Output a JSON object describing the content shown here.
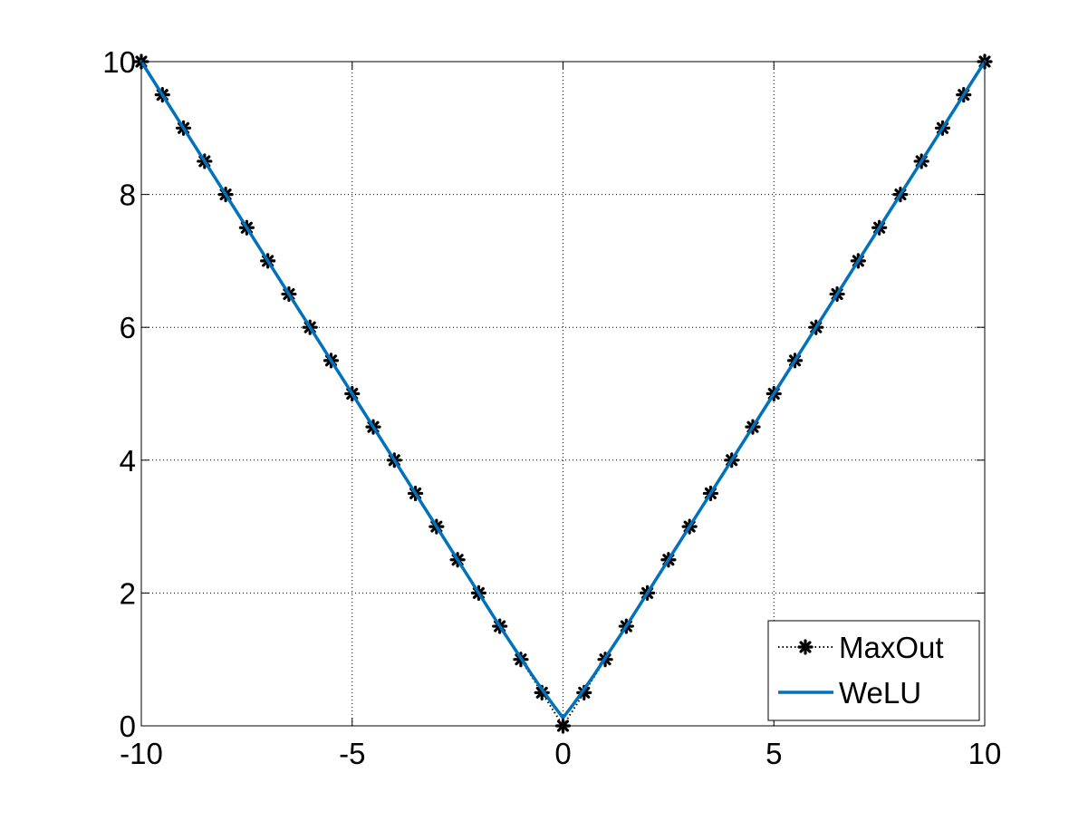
{
  "chart_data": {
    "type": "line",
    "title": "",
    "xlabel": "",
    "ylabel": "",
    "xlim": [
      -10,
      10
    ],
    "ylim": [
      0,
      10
    ],
    "x_ticks": [
      -10,
      -5,
      0,
      5,
      10
    ],
    "x_tick_labels": [
      "-10",
      "-5",
      "0",
      "5",
      "10"
    ],
    "y_ticks": [
      0,
      2,
      4,
      6,
      8,
      10
    ],
    "y_tick_labels": [
      "0",
      "2",
      "4",
      "6",
      "8",
      "10"
    ],
    "grid": true,
    "legend_position": "bottom-right",
    "series": [
      {
        "name": "MaxOut",
        "style": "dotted line with asterisk markers",
        "color": "#000000",
        "x": [
          -10,
          -9.5,
          -9,
          -8.5,
          -8,
          -7.5,
          -7,
          -6.5,
          -6,
          -5.5,
          -5,
          -4.5,
          -4,
          -3.5,
          -3,
          -2.5,
          -2,
          -1.5,
          -1,
          -0.5,
          0,
          0.5,
          1,
          1.5,
          2,
          2.5,
          3,
          3.5,
          4,
          4.5,
          5,
          5.5,
          6,
          6.5,
          7,
          7.5,
          8,
          8.5,
          9,
          9.5,
          10
        ],
        "y": [
          10,
          9.5,
          9,
          8.5,
          8,
          7.5,
          7,
          6.5,
          6,
          5.5,
          5,
          4.5,
          4,
          3.5,
          3,
          2.5,
          2,
          1.5,
          1,
          0.5,
          0,
          0.5,
          1,
          1.5,
          2,
          2.5,
          3,
          3.5,
          4,
          4.5,
          5,
          5.5,
          6,
          6.5,
          7,
          7.5,
          8,
          8.5,
          9,
          9.5,
          10
        ]
      },
      {
        "name": "WeLU",
        "style": "solid line",
        "color": "#0072BD",
        "x": [
          -10,
          -9,
          -8,
          -7,
          -6,
          -5,
          -4,
          -3,
          -2.5,
          -2,
          -1.5,
          -1,
          -0.75,
          -0.5,
          -0.25,
          0,
          0.25,
          0.5,
          0.75,
          1,
          1.5,
          2,
          2.5,
          3,
          4,
          5,
          6,
          7,
          8,
          9,
          10
        ],
        "y": [
          10,
          9,
          8,
          7,
          6,
          5,
          4,
          3,
          2.5,
          2,
          1.5,
          1.02,
          0.78,
          0.55,
          0.33,
          0.12,
          0.33,
          0.55,
          0.78,
          1.02,
          1.5,
          2,
          2.5,
          3,
          4,
          5,
          6,
          7,
          8,
          9,
          10
        ]
      }
    ]
  }
}
